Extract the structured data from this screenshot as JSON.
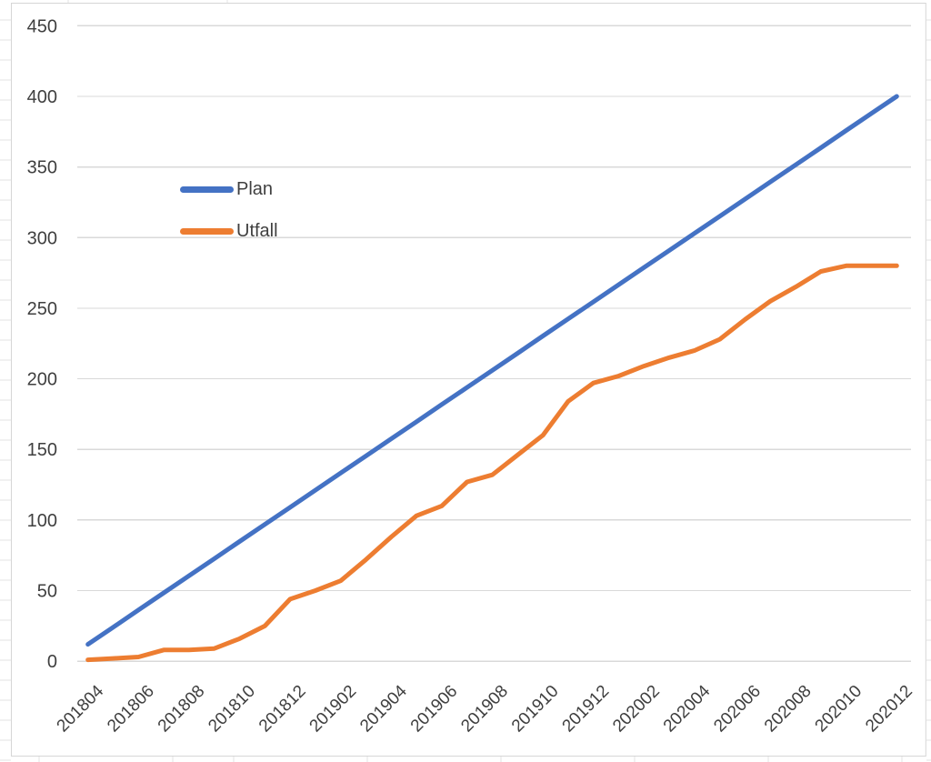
{
  "colors": {
    "background": "#FFFFFF",
    "chart_border": "#D6D6D6",
    "gridline": "#D9D9D9",
    "spreadsheet_gridline": "#E3E3E3",
    "axis_text": "#3F3F3F",
    "plan_line": "#4472C4",
    "utfall_line": "#ED7D31"
  },
  "chart_data": {
    "type": "line",
    "title": "",
    "xlabel": "",
    "ylabel": "",
    "grid": "horizontal",
    "legend_position": "inside-upper-left",
    "ylim": [
      0,
      450
    ],
    "ytick_step": 50,
    "y_tick_labels": [
      "0",
      "50",
      "100",
      "150",
      "200",
      "250",
      "300",
      "350",
      "400",
      "450"
    ],
    "x": [
      "201804",
      "201805",
      "201806",
      "201807",
      "201808",
      "201809",
      "201810",
      "201811",
      "201812",
      "201901",
      "201902",
      "201903",
      "201904",
      "201905",
      "201906",
      "201907",
      "201908",
      "201909",
      "201910",
      "201911",
      "201912",
      "202001",
      "202002",
      "202003",
      "202004",
      "202005",
      "202006",
      "202007",
      "202008",
      "202009",
      "202010",
      "202011",
      "202012"
    ],
    "x_tick_labels": [
      "201804",
      "201806",
      "201808",
      "201810",
      "201812",
      "201902",
      "201904",
      "201906",
      "201908",
      "201910",
      "201912",
      "202002",
      "202004",
      "202006",
      "202008",
      "202010",
      "202012"
    ],
    "series": [
      {
        "name": "Plan",
        "color": "#4472C4",
        "values": [
          12,
          24.1,
          36.3,
          48.4,
          60.5,
          72.6,
          84.8,
          96.9,
          109,
          121.1,
          133.3,
          145.4,
          157.5,
          169.6,
          181.8,
          193.9,
          206,
          218.1,
          230.3,
          242.4,
          254.5,
          266.6,
          278.8,
          290.9,
          303,
          315.1,
          327.3,
          339.4,
          351.5,
          363.6,
          375.8,
          387.9,
          400
        ]
      },
      {
        "name": "Utfall",
        "color": "#ED7D31",
        "values": [
          1,
          2,
          3,
          8,
          8,
          9,
          16,
          25,
          44,
          50,
          57,
          72,
          88,
          103,
          110,
          127,
          132,
          146,
          160,
          184,
          197,
          202,
          209,
          215,
          220,
          228,
          242,
          255,
          265,
          276,
          280,
          280,
          280
        ]
      }
    ]
  }
}
